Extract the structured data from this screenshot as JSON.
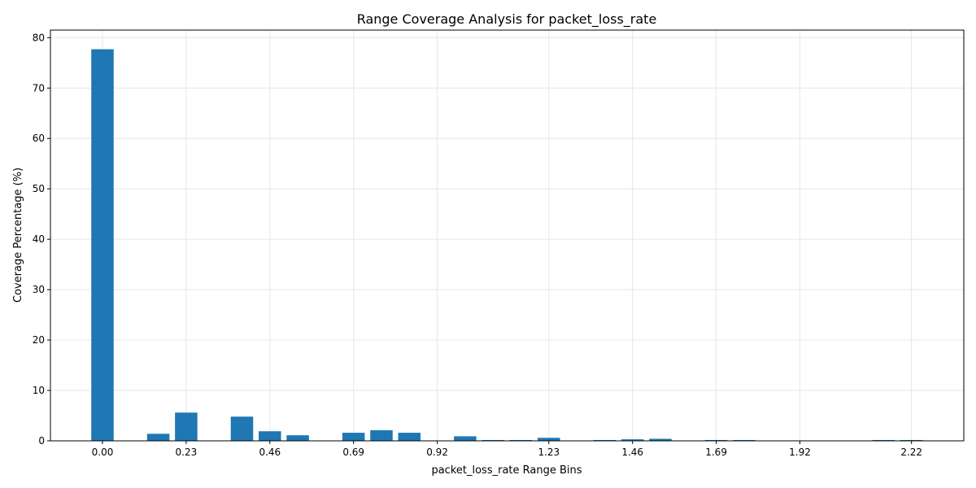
{
  "chart_data": {
    "type": "bar",
    "title": "Range Coverage Analysis for packet_loss_rate",
    "xlabel": "packet_loss_rate Range Bins",
    "ylabel": "Coverage Percentage (%)",
    "grid": true,
    "bar_color": "#1f77b4",
    "ylim": [
      0,
      81.5
    ],
    "yticks": [
      "0",
      "10",
      "20",
      "30",
      "40",
      "50",
      "60",
      "70",
      "80"
    ],
    "xticks": [
      "0.00",
      "0.23",
      "0.46",
      "0.69",
      "0.92",
      "1.23",
      "1.46",
      "1.69",
      "1.92",
      "2.22"
    ],
    "xtick_bins": [
      0,
      3,
      6,
      9,
      12,
      16,
      19,
      22,
      25,
      29
    ],
    "bins": 30,
    "values": [
      77.7,
      0,
      1.4,
      5.6,
      0,
      4.8,
      1.9,
      1.1,
      0,
      1.6,
      2.1,
      1.6,
      0,
      0.9,
      0.1,
      0.1,
      0.6,
      0,
      0.1,
      0.3,
      0.4,
      0,
      0.1,
      0.1,
      0,
      0,
      0,
      0,
      0.1,
      0.1
    ]
  }
}
